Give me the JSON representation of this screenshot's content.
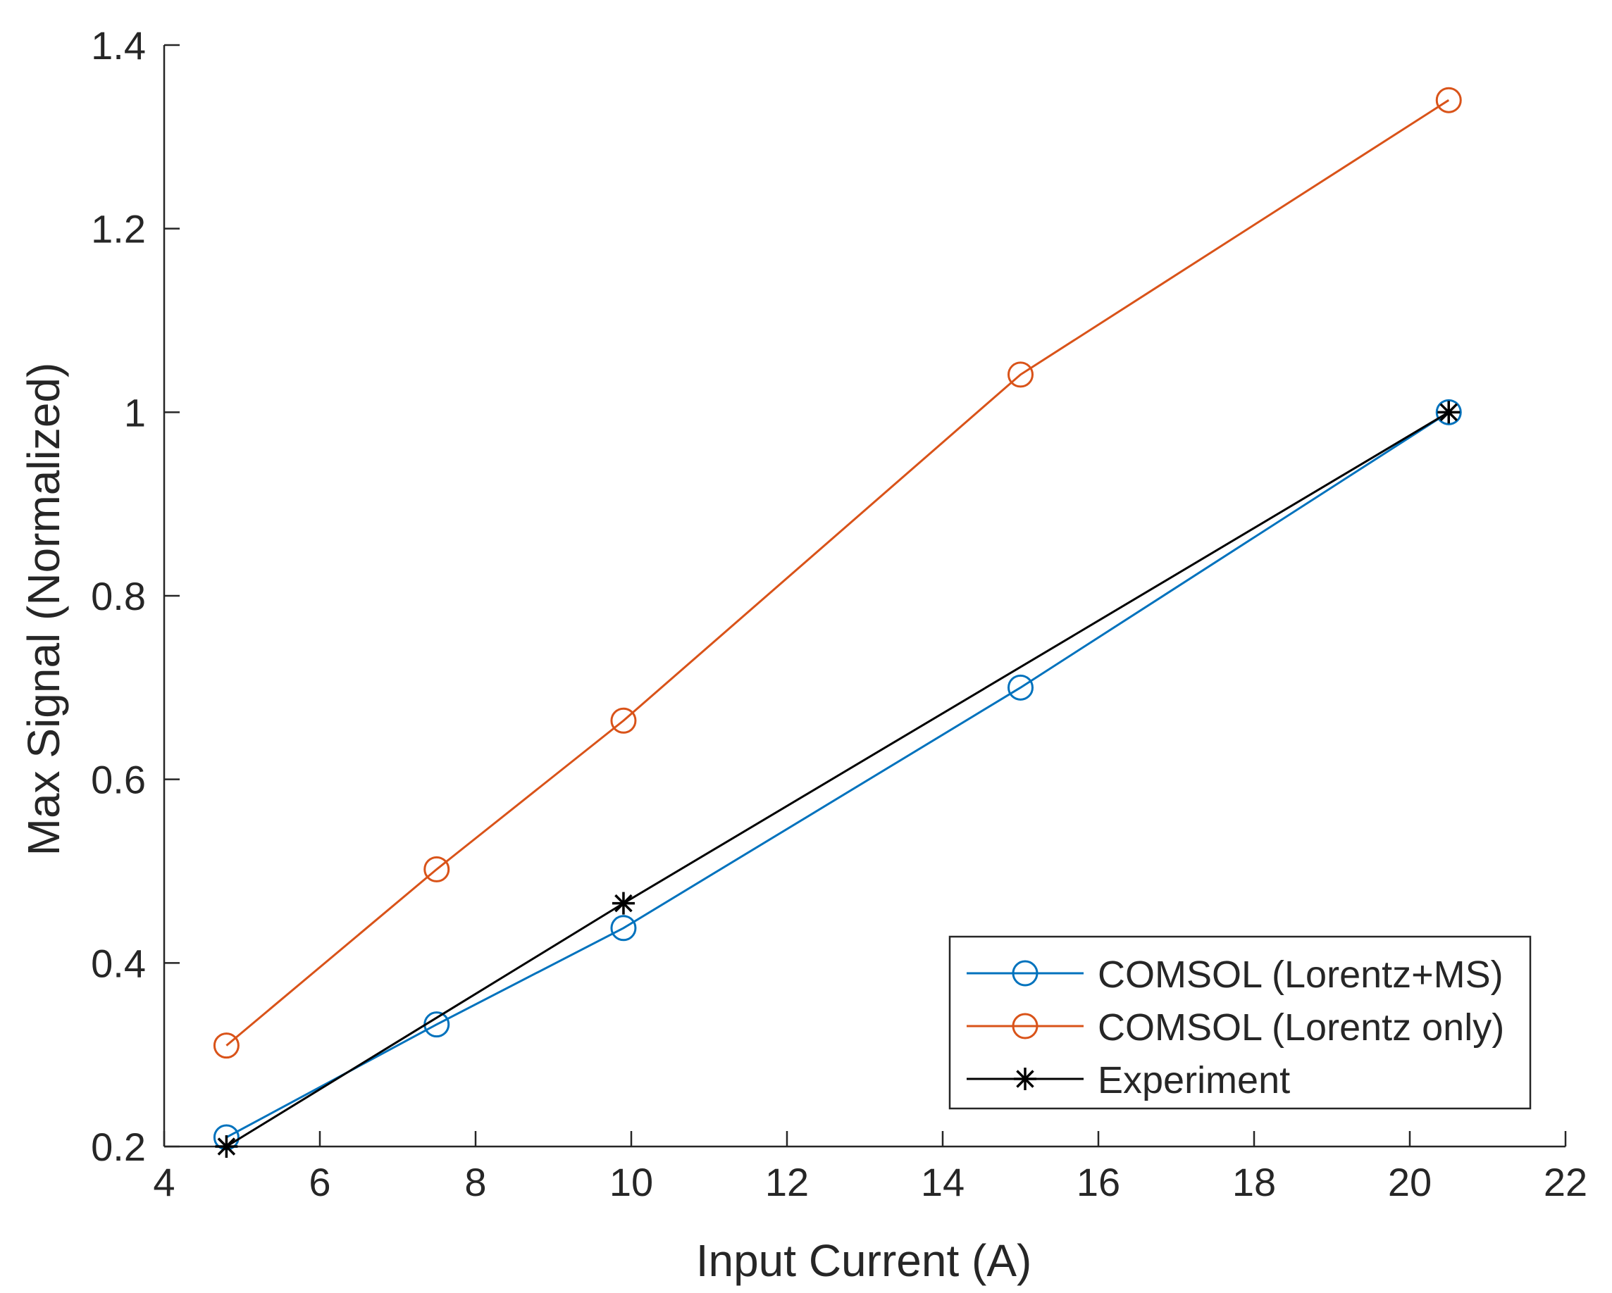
{
  "chart_data": {
    "type": "line",
    "title": "",
    "xlabel": "Input Current (A)",
    "ylabel": "Max Signal (Normalized)",
    "xlim": [
      4,
      22
    ],
    "ylim": [
      0.2,
      1.4
    ],
    "xticks": [
      4,
      6,
      8,
      10,
      12,
      14,
      16,
      18,
      20,
      22
    ],
    "yticks": [
      0.2,
      0.4,
      0.6,
      0.8,
      1.0,
      1.2,
      1.4
    ],
    "xtick_labels": [
      "4",
      "6",
      "8",
      "10",
      "12",
      "14",
      "16",
      "18",
      "20",
      "22"
    ],
    "ytick_labels": [
      "0.2",
      "0.4",
      "0.6",
      "0.8",
      "1",
      "1.2",
      "1.4"
    ],
    "grid": false,
    "legend_position": "bottom-right",
    "series": [
      {
        "name": "COMSOL (Lorentz+MS)",
        "color": "#0072BD",
        "marker": "circle",
        "x": [
          4.8,
          7.5,
          9.9,
          15.0,
          20.5
        ],
        "y": [
          0.21,
          0.333,
          0.438,
          0.7,
          1.0
        ]
      },
      {
        "name": "COMSOL (Lorentz only)",
        "color": "#D95319",
        "marker": "circle",
        "x": [
          4.8,
          7.5,
          9.9,
          15.0,
          20.5
        ],
        "y": [
          0.31,
          0.502,
          0.664,
          1.041,
          1.34
        ]
      },
      {
        "name": "Experiment",
        "color": "#000000",
        "marker": "asterisk",
        "x": [
          4.8,
          9.9,
          20.5
        ],
        "y": [
          0.2,
          0.465,
          1.0
        ]
      }
    ]
  }
}
